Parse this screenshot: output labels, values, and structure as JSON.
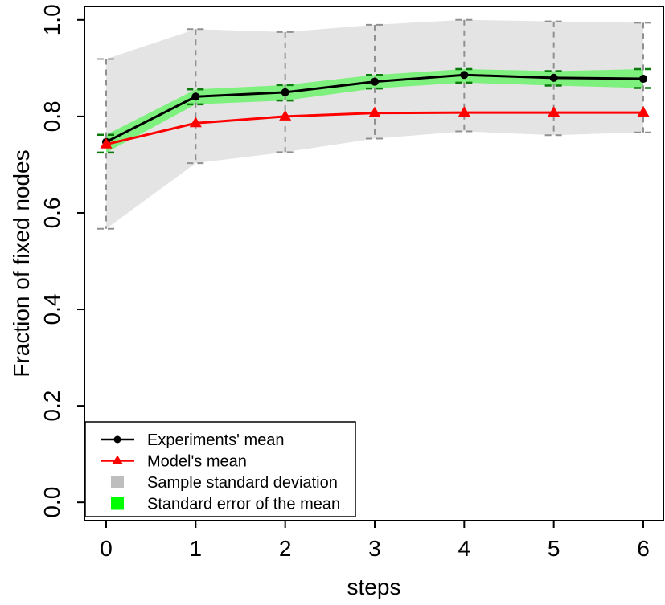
{
  "chart_data": {
    "type": "line",
    "title": "",
    "xlabel": "steps",
    "ylabel": "Fraction of fixed nodes",
    "x": [
      0,
      1,
      2,
      3,
      4,
      5,
      6
    ],
    "xtick_labels": [
      "0",
      "1",
      "2",
      "3",
      "4",
      "5",
      "6"
    ],
    "ytick_values": [
      0.0,
      0.2,
      0.4,
      0.6,
      0.8,
      1.0
    ],
    "ytick_labels": [
      "0.0",
      "0.2",
      "0.4",
      "0.6",
      "0.8",
      "1.0"
    ],
    "xlim": [
      -0.2425,
      6.2246
    ],
    "ylim": [
      -0.038,
      1.028
    ],
    "grid": false,
    "series": [
      {
        "name": "Experiments' mean",
        "color": "#000000",
        "marker": "circle",
        "values": [
          0.747,
          0.841,
          0.85,
          0.872,
          0.886,
          0.88,
          0.878
        ]
      },
      {
        "name": "Model's mean",
        "color": "#FF0000",
        "marker": "triangle",
        "values": [
          0.742,
          0.786,
          0.8,
          0.807,
          0.808,
          0.808,
          0.808
        ]
      }
    ],
    "bands": [
      {
        "name": "Sample standard deviation",
        "legend_color": "#BEBEBE",
        "fill": "#E4E4E4",
        "errorbar_color": "#909090",
        "lower": [
          0.567,
          0.703,
          0.726,
          0.754,
          0.769,
          0.761,
          0.767
        ],
        "upper": [
          0.919,
          0.981,
          0.975,
          0.99,
          1.0,
          0.997,
          0.994
        ]
      },
      {
        "name": "Standard error of the mean",
        "legend_color": "#00FF00",
        "fill": "rgba(0,255,0,0.45)",
        "errorbar_color": "#0D7A0D",
        "lower": [
          0.725,
          0.825,
          0.833,
          0.858,
          0.87,
          0.864,
          0.859
        ],
        "upper": [
          0.762,
          0.856,
          0.865,
          0.886,
          0.898,
          0.894,
          0.898
        ]
      }
    ],
    "legend": {
      "position": "bottom-left",
      "items": [
        {
          "label": "Experiments' mean",
          "marker": "line-circle",
          "color": "#000000"
        },
        {
          "label": "Model's mean",
          "marker": "line-triangle",
          "color": "#FF0000"
        },
        {
          "label": "Sample standard deviation",
          "marker": "square",
          "color": "#BEBEBE"
        },
        {
          "label": "Standard error of the mean",
          "marker": "square",
          "color": "#00FF00"
        }
      ]
    }
  }
}
